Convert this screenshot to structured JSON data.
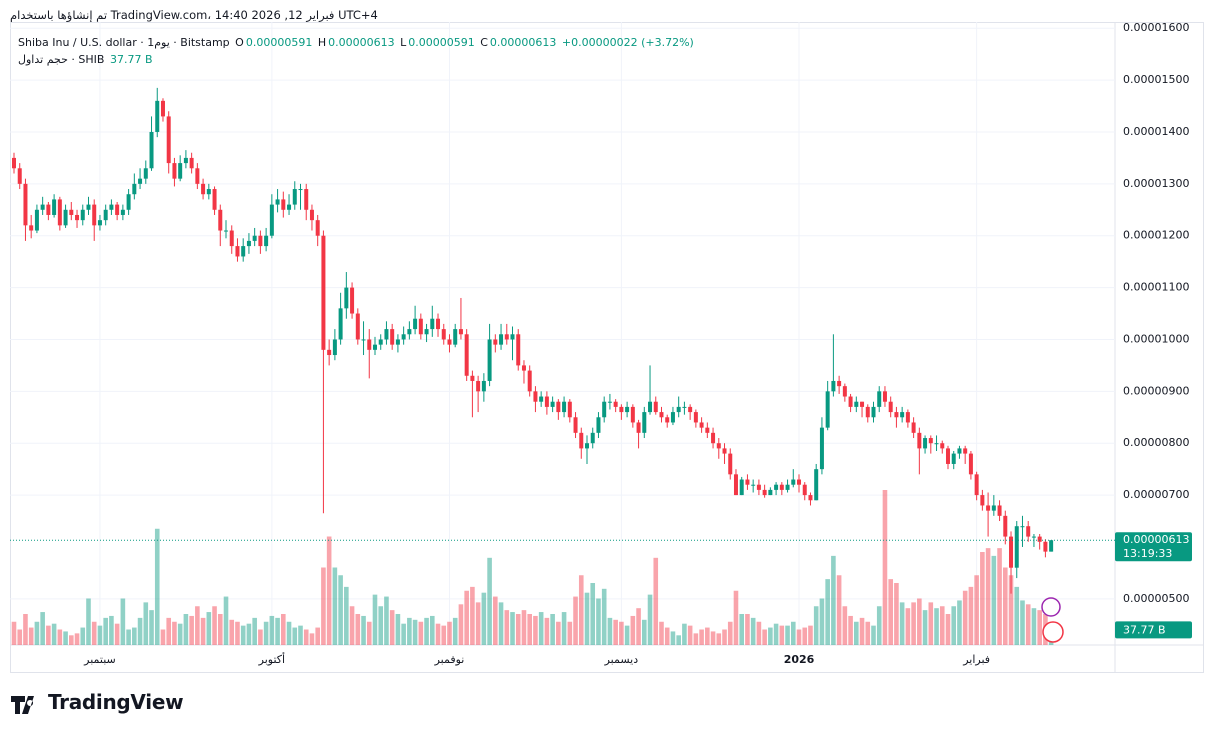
{
  "header": {
    "attribution": "تم إنشاؤها باستخدام TradingView.com، 14:40 2026 ,12 فبراير UTC+4",
    "symbol": "Shiba Inu / U.S. dollar · 1يوم · Bitstamp",
    "o_label": "O",
    "o": "0.00000591",
    "h_label": "H",
    "h": "0.00000613",
    "l_label": "L",
    "l": "0.00000591",
    "c_label": "C",
    "c": "0.00000613",
    "change": "+0.00000022 (+3.72%)",
    "volume_title": "حجم تداول · SHIB",
    "volume_value": "37.77 B"
  },
  "price_tag": {
    "price": "0.00000613",
    "countdown": "13:19:33"
  },
  "logo": "TradingView",
  "chart_data": {
    "type": "candlestick",
    "up_color": "#089981",
    "down_color": "#f23645",
    "grid": true,
    "ylim": [
      4.11e-06,
      1.612e-05
    ],
    "yticks": [
      {
        "value": 1.6e-05,
        "label": "0.00001600"
      },
      {
        "value": 1.5e-05,
        "label": "0.00001500"
      },
      {
        "value": 1.4e-05,
        "label": "0.00001400"
      },
      {
        "value": 1.3e-05,
        "label": "0.00001300"
      },
      {
        "value": 1.2e-05,
        "label": "0.00001200"
      },
      {
        "value": 1.1e-05,
        "label": "0.00001100"
      },
      {
        "value": 1e-05,
        "label": "0.00001000"
      },
      {
        "value": 9e-06,
        "label": "0.00000900"
      },
      {
        "value": 8e-06,
        "label": "0.00000800"
      },
      {
        "value": 7e-06,
        "label": "0.00000700"
      },
      {
        "value": 5e-06,
        "label": "0.00000500"
      }
    ],
    "categories": [
      null,
      null,
      null,
      null,
      null,
      null,
      null,
      null,
      null,
      null,
      null,
      null,
      null,
      null,
      null,
      "سبتمبر",
      null,
      null,
      null,
      null,
      null,
      null,
      null,
      null,
      null,
      null,
      null,
      null,
      null,
      null,
      null,
      null,
      null,
      null,
      null,
      null,
      null,
      null,
      null,
      null,
      null,
      null,
      null,
      null,
      null,
      "أكتوبر",
      null,
      null,
      null,
      null,
      null,
      null,
      null,
      null,
      null,
      null,
      null,
      null,
      null,
      null,
      null,
      null,
      null,
      null,
      null,
      null,
      null,
      null,
      null,
      null,
      null,
      null,
      null,
      null,
      null,
      null,
      "نوفمبر",
      null,
      null,
      null,
      null,
      null,
      null,
      null,
      null,
      null,
      null,
      null,
      null,
      null,
      null,
      null,
      null,
      null,
      null,
      null,
      null,
      null,
      null,
      null,
      null,
      null,
      null,
      null,
      null,
      null,
      "ديسمبر",
      null,
      null,
      null,
      null,
      null,
      null,
      null,
      null,
      null,
      null,
      null,
      null,
      null,
      null,
      null,
      null,
      null,
      null,
      null,
      null,
      null,
      null,
      null,
      null,
      null,
      null,
      null,
      null,
      null,
      null,
      "2026",
      null,
      null,
      null,
      null,
      null,
      null,
      null,
      null,
      null,
      null,
      null,
      null,
      null,
      null,
      null,
      null,
      null,
      null,
      null,
      null,
      null,
      null,
      null,
      null,
      null,
      null,
      null,
      null,
      null,
      null,
      "فبراير",
      null,
      null,
      null,
      null,
      null,
      null,
      null,
      null,
      null,
      null,
      null,
      null,
      null
    ],
    "open": [
      1.35e-05,
      1.33e-05,
      1.3e-05,
      1.22e-05,
      1.21e-05,
      1.25e-05,
      1.26e-05,
      1.24e-05,
      1.27e-05,
      1.22e-05,
      1.25e-05,
      1.24e-05,
      1.23e-05,
      1.25e-05,
      1.26e-05,
      1.22e-05,
      1.23e-05,
      1.25e-05,
      1.26e-05,
      1.24e-05,
      1.25e-05,
      1.28e-05,
      1.3e-05,
      1.31e-05,
      1.33e-05,
      1.4e-05,
      1.46e-05,
      1.43e-05,
      1.34e-05,
      1.31e-05,
      1.34e-05,
      1.35e-05,
      1.33e-05,
      1.3e-05,
      1.28e-05,
      1.29e-05,
      1.25e-05,
      1.21e-05,
      1.21e-05,
      1.18e-05,
      1.16e-05,
      1.18e-05,
      1.19e-05,
      1.2e-05,
      1.18e-05,
      1.2e-05,
      1.26e-05,
      1.27e-05,
      1.25e-05,
      1.26e-05,
      1.29e-05,
      1.29e-05,
      1.25e-05,
      1.23e-05,
      1.2e-05,
      9.8e-06,
      9.7e-06,
      1e-05,
      1.06e-05,
      1.1e-05,
      1.05e-05,
      1e-05,
      1e-05,
      9.8e-06,
      9.9e-06,
      1e-05,
      1.02e-05,
      9.9e-06,
      1e-05,
      1.01e-05,
      1.02e-05,
      1.04e-05,
      1.01e-05,
      1.02e-05,
      1.04e-05,
      1.02e-05,
      1e-05,
      9.9e-06,
      1.02e-05,
      1.01e-05,
      9.3e-06,
      9.2e-06,
      9e-06,
      9.2e-06,
      1e-05,
      9.9e-06,
      1.01e-05,
      1e-05,
      1.01e-05,
      9.5e-06,
      9.4e-06,
      9e-06,
      8.8e-06,
      8.9e-06,
      8.7e-06,
      8.8e-06,
      8.6e-06,
      8.8e-06,
      8.5e-06,
      8.2e-06,
      7.9e-06,
      8e-06,
      8.2e-06,
      8.5e-06,
      8.8e-06,
      8.8e-06,
      8.7e-06,
      8.6e-06,
      8.7e-06,
      8.4e-06,
      8.2e-06,
      8.6e-06,
      8.8e-06,
      8.6e-06,
      8.5e-06,
      8.4e-06,
      8.6e-06,
      8.7e-06,
      8.7e-06,
      8.6e-06,
      8.4e-06,
      8.3e-06,
      8.2e-06,
      8e-06,
      7.9e-06,
      7.8e-06,
      7.4e-06,
      7e-06,
      7.3e-06,
      7.2e-06,
      7.2e-06,
      7.1e-06,
      7e-06,
      7.1e-06,
      7.2e-06,
      7.1e-06,
      7.2e-06,
      7.3e-06,
      7.2e-06,
      7e-06,
      6.9e-06,
      7.5e-06,
      8.3e-06,
      9e-06,
      9.2e-06,
      9.1e-06,
      8.9e-06,
      8.7e-06,
      8.8e-06,
      8.7e-06,
      8.5e-06,
      8.7e-06,
      9e-06,
      8.8e-06,
      8.6e-06,
      8.5e-06,
      8.6e-06,
      8.4e-06,
      8.2e-06,
      7.9e-06,
      8.1e-06,
      8e-06,
      8e-06,
      7.9e-06,
      7.6e-06,
      7.8e-06,
      7.9e-06,
      7.8e-06,
      7.4e-06,
      7e-06,
      6.8e-06,
      6.7e-06,
      6.8e-06,
      6.6e-06,
      6.2e-06,
      5.6e-06,
      6.4e-06,
      6.4e-06,
      6.2e-06,
      6.2e-06,
      6.1e-06,
      5.91e-06
    ],
    "high": [
      1.36e-05,
      1.34e-05,
      1.31e-05,
      1.24e-05,
      1.26e-05,
      1.275e-05,
      1.265e-05,
      1.28e-05,
      1.275e-05,
      1.26e-05,
      1.265e-05,
      1.25e-05,
      1.26e-05,
      1.275e-05,
      1.27e-05,
      1.24e-05,
      1.26e-05,
      1.27e-05,
      1.265e-05,
      1.26e-05,
      1.29e-05,
      1.32e-05,
      1.33e-05,
      1.345e-05,
      1.43e-05,
      1.485e-05,
      1.465e-05,
      1.44e-05,
      1.35e-05,
      1.355e-05,
      1.365e-05,
      1.36e-05,
      1.34e-05,
      1.31e-05,
      1.3e-05,
      1.295e-05,
      1.26e-05,
      1.23e-05,
      1.22e-05,
      1.195e-05,
      1.195e-05,
      1.205e-05,
      1.215e-05,
      1.21e-05,
      1.215e-05,
      1.28e-05,
      1.29e-05,
      1.285e-05,
      1.28e-05,
      1.305e-05,
      1.3e-05,
      1.3e-05,
      1.26e-05,
      1.24e-05,
      1.21e-05,
      1e-05,
      1.02e-05,
      1.09e-05,
      1.13e-05,
      1.11e-05,
      1.06e-05,
      1.035e-05,
      1.02e-05,
      1.005e-05,
      1.01e-05,
      1.035e-05,
      1.03e-05,
      1.01e-05,
      1.025e-05,
      1.035e-05,
      1.065e-05,
      1.05e-05,
      1.03e-05,
      1.065e-05,
      1.05e-05,
      1.03e-05,
      1.01e-05,
      1.03e-05,
      1.08e-05,
      1.02e-05,
      9.4e-06,
      9.3e-06,
      9.35e-06,
      1.03e-05,
      1.01e-05,
      1.03e-05,
      1.03e-05,
      1.025e-05,
      1.02e-05,
      9.6e-06,
      9.5e-06,
      9.1e-06,
      9e-06,
      9e-06,
      8.9e-06,
      8.85e-06,
      8.9e-06,
      8.85e-06,
      8.6e-06,
      8.3e-06,
      8.15e-06,
      8.3e-06,
      8.6e-06,
      8.9e-06,
      8.95e-06,
      8.85e-06,
      8.75e-06,
      8.8e-06,
      8.75e-06,
      8.45e-06,
      8.7e-06,
      9.5e-06,
      8.9e-06,
      8.7e-06,
      8.55e-06,
      8.7e-06,
      8.9e-06,
      8.8e-06,
      8.75e-06,
      8.65e-06,
      8.5e-06,
      8.4e-06,
      8.3e-06,
      8.1e-06,
      8e-06,
      7.9e-06,
      7.5e-06,
      7.35e-06,
      7.4e-06,
      7.3e-06,
      7.3e-06,
      7.2e-06,
      7.15e-06,
      7.25e-06,
      7.25e-06,
      7.3e-06,
      7.5e-06,
      7.4e-06,
      7.25e-06,
      7.05e-06,
      7.6e-06,
      8.5e-06,
      9.2e-06,
      1.01e-05,
      9.3e-06,
      9.15e-06,
      8.95e-06,
      8.9e-06,
      8.8e-06,
      8.75e-06,
      8.8e-06,
      9.1e-06,
      9.1e-06,
      8.9e-06,
      8.7e-06,
      8.7e-06,
      8.65e-06,
      8.5e-06,
      8.3e-06,
      8.15e-06,
      8.15e-06,
      8.15e-06,
      8.05e-06,
      7.95e-06,
      7.85e-06,
      7.95e-06,
      7.95e-06,
      7.85e-06,
      7.45e-06,
      7.1e-06,
      7.05e-06,
      7e-06,
      6.9e-06,
      6.7e-06,
      6.3e-06,
      6.5e-06,
      6.6e-06,
      6.5e-06,
      6.25e-06,
      6.25e-06,
      6.15e-06,
      6.13e-06
    ],
    "low": [
      1.32e-05,
      1.29e-05,
      1.19e-05,
      1.195e-05,
      1.205e-05,
      1.24e-05,
      1.23e-05,
      1.235e-05,
      1.21e-05,
      1.215e-05,
      1.23e-05,
      1.215e-05,
      1.22e-05,
      1.24e-05,
      1.19e-05,
      1.21e-05,
      1.22e-05,
      1.24e-05,
      1.23e-05,
      1.23e-05,
      1.24e-05,
      1.27e-05,
      1.29e-05,
      1.3e-05,
      1.325e-05,
      1.39e-05,
      1.42e-05,
      1.32e-05,
      1.295e-05,
      1.305e-05,
      1.33e-05,
      1.32e-05,
      1.29e-05,
      1.27e-05,
      1.27e-05,
      1.24e-05,
      1.18e-05,
      1.195e-05,
      1.165e-05,
      1.15e-05,
      1.15e-05,
      1.165e-05,
      1.18e-05,
      1.165e-05,
      1.17e-05,
      1.195e-05,
      1.245e-05,
      1.235e-05,
      1.24e-05,
      1.25e-05,
      1.25e-05,
      1.23e-05,
      1.21e-05,
      1.18e-05,
      6.65e-06,
      9.5e-06,
      9.6e-06,
      9.9e-06,
      1.04e-05,
      1.04e-05,
      9.9e-06,
      9.7e-06,
      9.25e-06,
      9.7e-06,
      9.8e-06,
      9.9e-06,
      9.8e-06,
      9.75e-06,
      9.9e-06,
      1e-05,
      1.01e-05,
      1e-05,
      9.95e-06,
      1.005e-05,
      1.005e-05,
      9.9e-06,
      9.75e-06,
      9.85e-06,
      1e-05,
      9.2e-06,
      8.5e-06,
      8.6e-06,
      8.8e-06,
      9.1e-06,
      9.75e-06,
      9.8e-06,
      9.9e-06,
      9.6e-06,
      9.4e-06,
      9.15e-06,
      8.9e-06,
      8.6e-06,
      8.7e-06,
      8.55e-06,
      8.6e-06,
      8.45e-06,
      8.5e-06,
      8.4e-06,
      8.1e-06,
      7.7e-06,
      7.6e-06,
      7.9e-06,
      8.1e-06,
      8.4e-06,
      8.65e-06,
      8.6e-06,
      8.45e-06,
      8.5e-06,
      8.3e-06,
      7.9e-06,
      8.1e-06,
      8.55e-06,
      8.55e-06,
      8.4e-06,
      8.3e-06,
      8.35e-06,
      8.5e-06,
      8.55e-06,
      8.45e-06,
      8.3e-06,
      8.2e-06,
      8.1e-06,
      7.9e-06,
      7.7e-06,
      7.6e-06,
      7.3e-06,
      7e-06,
      7e-06,
      7.1e-06,
      7.05e-06,
      7e-06,
      6.95e-06,
      7e-06,
      7e-06,
      7e-06,
      7.05e-06,
      7.15e-06,
      7.05e-06,
      6.9e-06,
      6.8e-06,
      6.9e-06,
      7.4e-06,
      8.25e-06,
      8.9e-06,
      8.95e-06,
      8.8e-06,
      8.6e-06,
      8.6e-06,
      8.5e-06,
      8.4e-06,
      8.4e-06,
      8.6e-06,
      8.7e-06,
      8.5e-06,
      8.3e-06,
      8.4e-06,
      8.3e-06,
      8.1e-06,
      7.4e-06,
      7.8e-06,
      7.8e-06,
      7.85e-06,
      7.8e-06,
      7.5e-06,
      7.5e-06,
      7.7e-06,
      7.6e-06,
      7.3e-06,
      6.9e-06,
      6.7e-06,
      6.2e-06,
      6.6e-06,
      6.5e-06,
      6.05e-06,
      5.1e-06,
      5.4e-06,
      6e-06,
      6.1e-06,
      6e-06,
      5.95e-06,
      5.8e-06,
      5.91e-06
    ],
    "close": [
      1.33e-05,
      1.3e-05,
      1.22e-05,
      1.21e-05,
      1.25e-05,
      1.26e-05,
      1.24e-05,
      1.27e-05,
      1.22e-05,
      1.25e-05,
      1.24e-05,
      1.23e-05,
      1.25e-05,
      1.26e-05,
      1.22e-05,
      1.23e-05,
      1.25e-05,
      1.26e-05,
      1.24e-05,
      1.25e-05,
      1.28e-05,
      1.3e-05,
      1.31e-05,
      1.33e-05,
      1.4e-05,
      1.46e-05,
      1.43e-05,
      1.34e-05,
      1.31e-05,
      1.34e-05,
      1.35e-05,
      1.33e-05,
      1.3e-05,
      1.28e-05,
      1.29e-05,
      1.25e-05,
      1.21e-05,
      1.21e-05,
      1.18e-05,
      1.16e-05,
      1.18e-05,
      1.19e-05,
      1.2e-05,
      1.18e-05,
      1.2e-05,
      1.26e-05,
      1.27e-05,
      1.25e-05,
      1.26e-05,
      1.29e-05,
      1.29e-05,
      1.25e-05,
      1.23e-05,
      1.2e-05,
      9.8e-06,
      9.7e-06,
      1e-05,
      1.06e-05,
      1.1e-05,
      1.05e-05,
      1e-05,
      1e-05,
      9.8e-06,
      9.9e-06,
      1e-05,
      1.02e-05,
      9.9e-06,
      1e-05,
      1.01e-05,
      1.02e-05,
      1.04e-05,
      1.01e-05,
      1.02e-05,
      1.04e-05,
      1.02e-05,
      1e-05,
      9.9e-06,
      1.02e-05,
      1.01e-05,
      9.3e-06,
      9.2e-06,
      9e-06,
      9.2e-06,
      1e-05,
      9.9e-06,
      1.01e-05,
      1e-05,
      1.01e-05,
      9.5e-06,
      9.4e-06,
      9e-06,
      8.8e-06,
      8.9e-06,
      8.7e-06,
      8.8e-06,
      8.6e-06,
      8.8e-06,
      8.5e-06,
      8.2e-06,
      7.9e-06,
      8e-06,
      8.2e-06,
      8.5e-06,
      8.8e-06,
      8.8e-06,
      8.7e-06,
      8.6e-06,
      8.7e-06,
      8.4e-06,
      8.2e-06,
      8.6e-06,
      8.8e-06,
      8.6e-06,
      8.5e-06,
      8.4e-06,
      8.6e-06,
      8.7e-06,
      8.7e-06,
      8.6e-06,
      8.4e-06,
      8.3e-06,
      8.2e-06,
      8e-06,
      7.9e-06,
      7.8e-06,
      7.4e-06,
      7e-06,
      7.3e-06,
      7.2e-06,
      7.2e-06,
      7.1e-06,
      7e-06,
      7.1e-06,
      7.2e-06,
      7.1e-06,
      7.2e-06,
      7.3e-06,
      7.2e-06,
      7e-06,
      6.9e-06,
      7.5e-06,
      8.3e-06,
      9e-06,
      9.2e-06,
      9.1e-06,
      8.9e-06,
      8.7e-06,
      8.8e-06,
      8.7e-06,
      8.5e-06,
      8.7e-06,
      9e-06,
      8.8e-06,
      8.6e-06,
      8.5e-06,
      8.6e-06,
      8.4e-06,
      8.2e-06,
      7.9e-06,
      8.1e-06,
      8e-06,
      8e-06,
      7.9e-06,
      7.6e-06,
      7.8e-06,
      7.9e-06,
      7.8e-06,
      7.4e-06,
      7e-06,
      6.8e-06,
      6.7e-06,
      6.8e-06,
      6.6e-06,
      6.2e-06,
      5.6e-06,
      6.4e-06,
      6.4e-06,
      6.2e-06,
      6.2e-06,
      6.1e-06,
      5.91e-06,
      6.13e-06
    ],
    "volume": [
      60000000000.0,
      40000000000.0,
      80000000000.0,
      45000000000.0,
      60000000000.0,
      85000000000.0,
      50000000000.0,
      55000000000.0,
      40000000000.0,
      35000000000.0,
      25000000000.0,
      30000000000.0,
      45000000000.0,
      120000000000.0,
      60000000000.0,
      50000000000.0,
      70000000000.0,
      75000000000.0,
      55000000000.0,
      120000000000.0,
      40000000000.0,
      45000000000.0,
      70000000000.0,
      110000000000.0,
      90000000000.0,
      300000000000.0,
      40000000000.0,
      70000000000.0,
      60000000000.0,
      55000000000.0,
      80000000000.0,
      75000000000.0,
      100000000000.0,
      70000000000.0,
      85000000000.0,
      100000000000.0,
      80000000000.0,
      125000000000.0,
      65000000000.0,
      60000000000.0,
      50000000000.0,
      55000000000.0,
      70000000000.0,
      40000000000.0,
      60000000000.0,
      75000000000.0,
      70000000000.0,
      80000000000.0,
      60000000000.0,
      45000000000.0,
      50000000000.0,
      40000000000.0,
      30000000000.0,
      45000000000.0,
      200000000000.0,
      280000000000.0,
      200000000000.0,
      180000000000.0,
      150000000000.0,
      100000000000.0,
      80000000000.0,
      75000000000.0,
      60000000000.0,
      130000000000.0,
      100000000000.0,
      125000000000.0,
      90000000000.0,
      80000000000.0,
      55000000000.0,
      70000000000.0,
      65000000000.0,
      60000000000.0,
      70000000000.0,
      75000000000.0,
      55000000000.0,
      50000000000.0,
      60000000000.0,
      70000000000.0,
      105000000000.0,
      140000000000.0,
      150000000000.0,
      110000000000.0,
      135000000000.0,
      225000000000.0,
      125000000000.0,
      110000000000.0,
      90000000000.0,
      85000000000.0,
      80000000000.0,
      90000000000.0,
      80000000000.0,
      75000000000.0,
      85000000000.0,
      70000000000.0,
      80000000000.0,
      60000000000.0,
      85000000000.0,
      60000000000.0,
      125000000000.0,
      180000000000.0,
      135000000000.0,
      160000000000.0,
      120000000000.0,
      145000000000.0,
      70000000000.0,
      65000000000.0,
      60000000000.0,
      50000000000.0,
      75000000000.0,
      95000000000.0,
      65000000000.0,
      130000000000.0,
      225000000000.0,
      60000000000.0,
      45000000000.0,
      35000000000.0,
      25000000000.0,
      55000000000.0,
      50000000000.0,
      30000000000.0,
      40000000000.0,
      45000000000.0,
      35000000000.0,
      30000000000.0,
      40000000000.0,
      60000000000.0,
      140000000000.0,
      80000000000.0,
      80000000000.0,
      70000000000.0,
      60000000000.0,
      40000000000.0,
      45000000000.0,
      55000000000.0,
      50000000000.0,
      50000000000.0,
      60000000000.0,
      40000000000.0,
      45000000000.0,
      50000000000.0,
      100000000000.0,
      120000000000.0,
      170000000000.0,
      230000000000.0,
      180000000000.0,
      100000000000.0,
      75000000000.0,
      60000000000.0,
      70000000000.0,
      60000000000.0,
      50000000000.0,
      100000000000.0,
      400000000000.0,
      170000000000.0,
      160000000000.0,
      110000000000.0,
      95000000000.0,
      110000000000.0,
      120000000000.0,
      90000000000.0,
      110000000000.0,
      95000000000.0,
      100000000000.0,
      80000000000.0,
      100000000000.0,
      115000000000.0,
      140000000000.0,
      150000000000.0,
      180000000000.0,
      240000000000.0,
      250000000000.0,
      230000000000.0,
      250000000000.0,
      200000000000.0,
      180000000000.0,
      150000000000.0,
      115000000000.0,
      105000000000.0,
      95000000000.0,
      90000000000.0,
      80000000000.0,
      37770000000.0
    ],
    "volume_last_label": "37.77 B"
  }
}
